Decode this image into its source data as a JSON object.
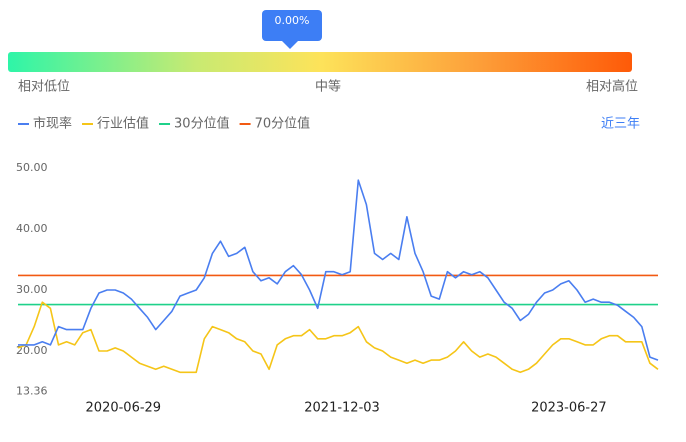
{
  "gauge": {
    "tooltip": "0.00%",
    "labels": [
      "相对低位",
      "中等",
      "相对高位"
    ]
  },
  "range_button": "近三年",
  "chart_data": {
    "type": "line",
    "categories": [
      null,
      null,
      null,
      null,
      null,
      null,
      null,
      null,
      null,
      null,
      null,
      null,
      null,
      "2020-06-29",
      null,
      null,
      null,
      null,
      null,
      null,
      null,
      null,
      null,
      null,
      null,
      null,
      null,
      null,
      null,
      null,
      null,
      null,
      null,
      null,
      null,
      null,
      null,
      null,
      null,
      null,
      "2021-12-03",
      null,
      null,
      null,
      null,
      null,
      null,
      null,
      null,
      null,
      null,
      null,
      null,
      null,
      null,
      null,
      null,
      null,
      null,
      null,
      null,
      null,
      null,
      null,
      null,
      null,
      null,
      null,
      "2023-06-27",
      null,
      null,
      null,
      null,
      null,
      null,
      null,
      null,
      null,
      null,
      null
    ],
    "series": [
      {
        "name": "市现率",
        "color": "#4a7ef0",
        "values": [
          21,
          21,
          21,
          21.5,
          21,
          24,
          23.5,
          23.5,
          23.5,
          27,
          29.5,
          30,
          30,
          29.5,
          28.5,
          27,
          25.5,
          23.5,
          25,
          26.5,
          29,
          29.5,
          30,
          32,
          36,
          38,
          35.5,
          36,
          37,
          33,
          31.5,
          32,
          31,
          33,
          34,
          32.5,
          30,
          27,
          33,
          33,
          32.5,
          33,
          48,
          44,
          36,
          35,
          36,
          35,
          42,
          36,
          33,
          29,
          28.5,
          33,
          32,
          33,
          32.5,
          33,
          32,
          30,
          28,
          27,
          25,
          26,
          28,
          29.5,
          30,
          31,
          31.5,
          30,
          28,
          28.5,
          28,
          28,
          27.5,
          26.5,
          25.5,
          24,
          19,
          18.5
        ]
      },
      {
        "name": "行业估值",
        "color": "#f5c518",
        "values": [
          20.5,
          21,
          24,
          28,
          27,
          21,
          21.5,
          21,
          23,
          23.5,
          20,
          20,
          20.5,
          20,
          19,
          18,
          17.5,
          17,
          17.5,
          17,
          16.5,
          16.5,
          16.5,
          22,
          24,
          23.5,
          23,
          22,
          21.5,
          20,
          19.5,
          17,
          21,
          22,
          22.5,
          22.5,
          23.5,
          22,
          22,
          22.5,
          22.5,
          23,
          24,
          21.5,
          20.5,
          20,
          19,
          18.5,
          18,
          18.5,
          18,
          18.5,
          18.5,
          19,
          20,
          21.5,
          20,
          19,
          19.5,
          19,
          18,
          17,
          16.5,
          17,
          18,
          19.5,
          21,
          22,
          22,
          21.5,
          21,
          21,
          22,
          22.5,
          22.5,
          21.5,
          21.5,
          21.5,
          18,
          17
        ]
      },
      {
        "name": "30分位值",
        "color": "#1fd18a",
        "values": [
          27.6,
          27.6,
          27.6,
          27.6,
          27.6,
          27.6,
          27.6,
          27.6,
          27.6,
          27.6,
          27.6,
          27.6,
          27.6,
          27.6,
          27.6,
          27.6,
          27.6,
          27.6,
          27.6,
          27.6,
          27.6,
          27.6,
          27.6,
          27.6,
          27.6,
          27.6,
          27.6,
          27.6,
          27.6,
          27.6,
          27.6,
          27.6,
          27.6,
          27.6,
          27.6,
          27.6,
          27.6,
          27.6,
          27.6,
          27.6,
          27.6,
          27.6,
          27.6,
          27.6,
          27.6,
          27.6,
          27.6,
          27.6,
          27.6,
          27.6,
          27.6,
          27.6,
          27.6,
          27.6,
          27.6,
          27.6,
          27.6,
          27.6,
          27.6,
          27.6,
          27.6,
          27.6,
          27.6,
          27.6,
          27.6,
          27.6,
          27.6,
          27.6,
          27.6,
          27.6,
          27.6,
          27.6,
          27.6,
          27.6,
          27.6,
          27.6,
          27.6,
          27.6,
          27.6,
          27.6
        ]
      },
      {
        "name": "70分位值",
        "color": "#f25a12",
        "values": [
          32.4,
          32.4,
          32.4,
          32.4,
          32.4,
          32.4,
          32.4,
          32.4,
          32.4,
          32.4,
          32.4,
          32.4,
          32.4,
          32.4,
          32.4,
          32.4,
          32.4,
          32.4,
          32.4,
          32.4,
          32.4,
          32.4,
          32.4,
          32.4,
          32.4,
          32.4,
          32.4,
          32.4,
          32.4,
          32.4,
          32.4,
          32.4,
          32.4,
          32.4,
          32.4,
          32.4,
          32.4,
          32.4,
          32.4,
          32.4,
          32.4,
          32.4,
          32.4,
          32.4,
          32.4,
          32.4,
          32.4,
          32.4,
          32.4,
          32.4,
          32.4,
          32.4,
          32.4,
          32.4,
          32.4,
          32.4,
          32.4,
          32.4,
          32.4,
          32.4,
          32.4,
          32.4,
          32.4,
          32.4,
          32.4,
          32.4,
          32.4,
          32.4,
          32.4,
          32.4,
          32.4,
          32.4,
          32.4,
          32.4,
          32.4,
          32.4,
          32.4,
          32.4,
          32.4,
          32.4
        ]
      }
    ],
    "ylim": [
      13.36,
      52
    ],
    "yticks": [
      13.36,
      {
        "value": 20,
        "label": "20.00"
      },
      {
        "value": 30,
        "label": "30.00"
      },
      {
        "value": 40,
        "label": "40.00"
      },
      {
        "value": 50,
        "label": "50.00"
      }
    ],
    "grid": false
  }
}
